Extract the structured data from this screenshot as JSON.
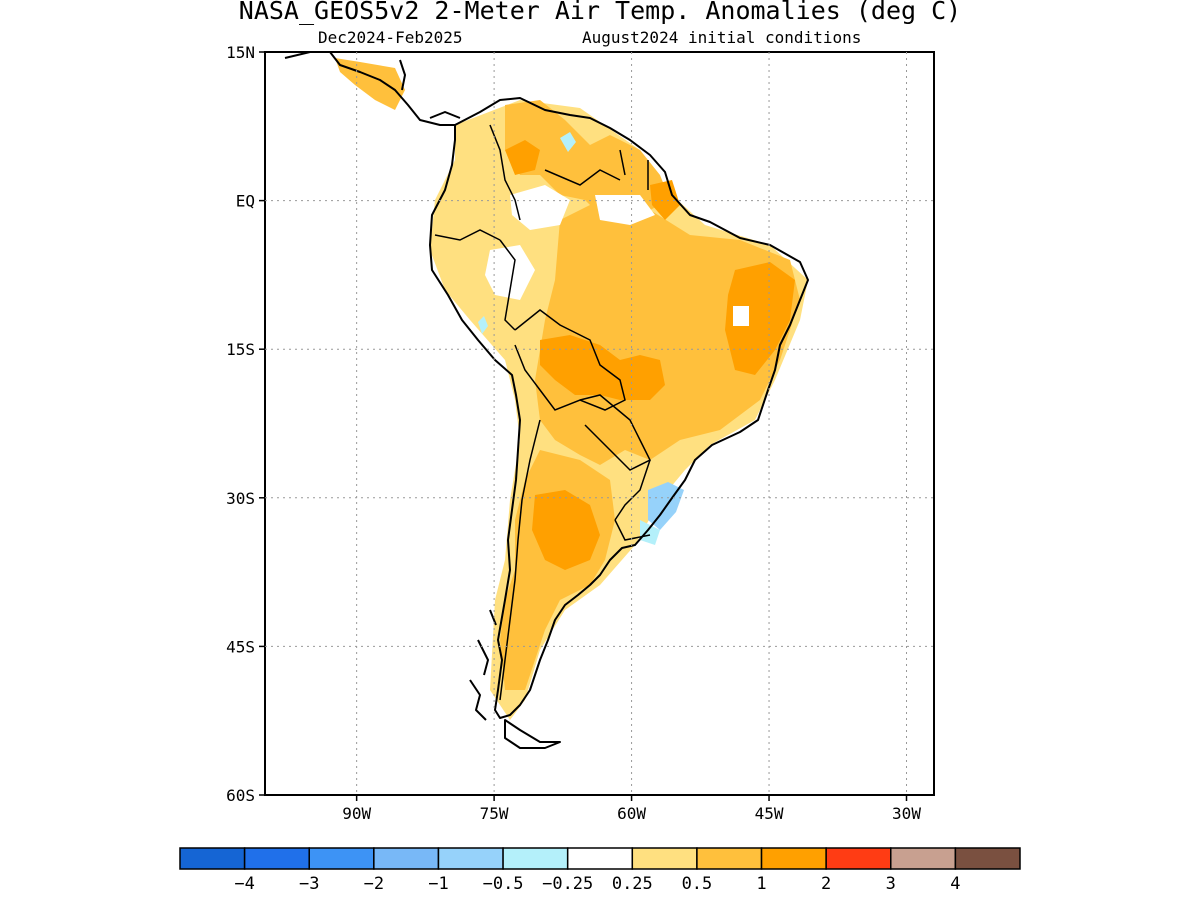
{
  "title": "NASA_GEOS5v2 2-Meter Air Temp. Anomalies (deg C)",
  "subtitle_left": "Dec2024-Feb2025",
  "subtitle_right": "August2024 initial conditions",
  "map": {
    "lon_range": [
      -100,
      -27
    ],
    "lat_range": [
      -60,
      15
    ],
    "lat_ticks": [
      {
        "value": 15,
        "label": "15N"
      },
      {
        "value": 0,
        "label": "EQ"
      },
      {
        "value": -15,
        "label": "15S"
      },
      {
        "value": -30,
        "label": "30S"
      },
      {
        "value": -45,
        "label": "45S"
      },
      {
        "value": -60,
        "label": "60S"
      }
    ],
    "lon_ticks": [
      {
        "value": -90,
        "label": "90W"
      },
      {
        "value": -75,
        "label": "75W"
      },
      {
        "value": -60,
        "label": "60W"
      },
      {
        "value": -45,
        "label": "45W"
      },
      {
        "value": -30,
        "label": "30W"
      }
    ],
    "grid": "dotted"
  },
  "colorbar": {
    "colors": [
      "#1565d4",
      "#2070ea",
      "#3d93f5",
      "#78b8f7",
      "#96d2fa",
      "#b4f0fa",
      "#ffffff",
      "#ffe080",
      "#ffc03c",
      "#ffa000",
      "#ff3c14",
      "#c8a090",
      "#7a5040"
    ],
    "labels": [
      "−4",
      "−3",
      "−2",
      "−1",
      "−0.5",
      "−0.25",
      "0.25",
      "0.5",
      "1",
      "2",
      "3",
      "4"
    ]
  },
  "colors": {
    "land_outline": "#000000",
    "anom_0_25_to_0_5": "#ffe080",
    "anom_0_5_to_1": "#ffc03c",
    "anom_1_to_2": "#ffa000",
    "anom_neg_0_5_to_neg_0_25": "#b4f0fa",
    "anom_neg_1_to_neg_0_5": "#96d2fa"
  }
}
